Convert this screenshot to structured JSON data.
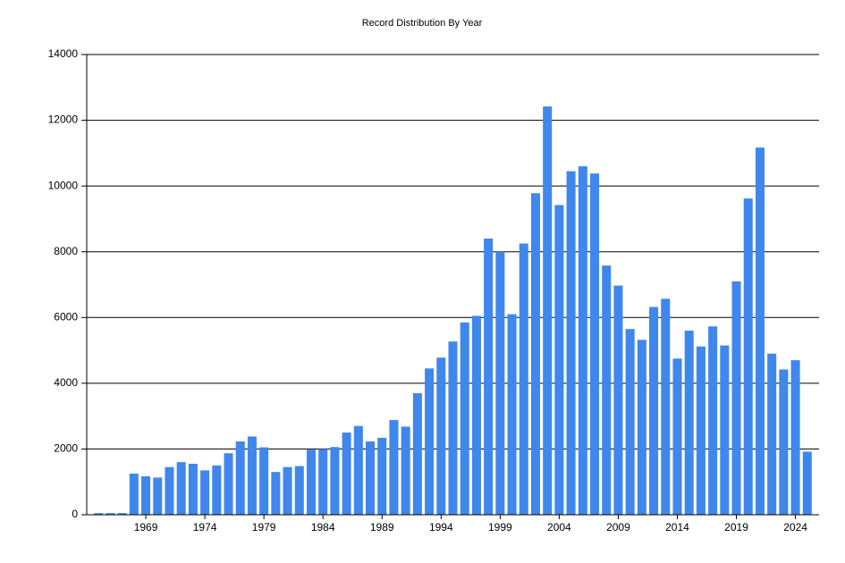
{
  "chart_data": {
    "type": "bar",
    "title": "Record Distribution By Year",
    "x": [
      1965,
      1966,
      1967,
      1968,
      1969,
      1970,
      1971,
      1972,
      1973,
      1974,
      1975,
      1976,
      1977,
      1978,
      1979,
      1980,
      1981,
      1982,
      1983,
      1984,
      1985,
      1986,
      1987,
      1988,
      1989,
      1990,
      1991,
      1992,
      1993,
      1994,
      1995,
      1996,
      1997,
      1998,
      1999,
      2000,
      2001,
      2002,
      2003,
      2004,
      2005,
      2006,
      2007,
      2008,
      2009,
      2010,
      2011,
      2012,
      2013,
      2014,
      2015,
      2016,
      2017,
      2018,
      2019,
      2020,
      2021,
      2022,
      2023,
      2024,
      2025
    ],
    "values": [
      50,
      50,
      50,
      1250,
      1170,
      1130,
      1450,
      1600,
      1550,
      1350,
      1500,
      1870,
      2230,
      2380,
      2050,
      1300,
      1450,
      1480,
      1980,
      2000,
      2060,
      2500,
      2700,
      2230,
      2340,
      2880,
      2680,
      3700,
      4450,
      4780,
      5270,
      5850,
      6050,
      8400,
      8000,
      6100,
      8250,
      9780,
      12420,
      9420,
      10450,
      10600,
      10380,
      7580,
      6970,
      5650,
      5320,
      6320,
      6570,
      4750,
      5600,
      5120,
      5730,
      5150,
      7100,
      9620,
      11170,
      4900,
      4420,
      4700,
      1920
    ],
    "color": "#3f87ec",
    "xlim": [
      1964,
      2026
    ],
    "xticks": [
      1969,
      1974,
      1979,
      1984,
      1989,
      1994,
      1999,
      2004,
      2009,
      2014,
      2019,
      2024
    ],
    "ylim": [
      0,
      14000
    ],
    "yticks": [
      0,
      2000,
      4000,
      6000,
      8000,
      10000,
      12000,
      14000
    ],
    "grid": true
  }
}
